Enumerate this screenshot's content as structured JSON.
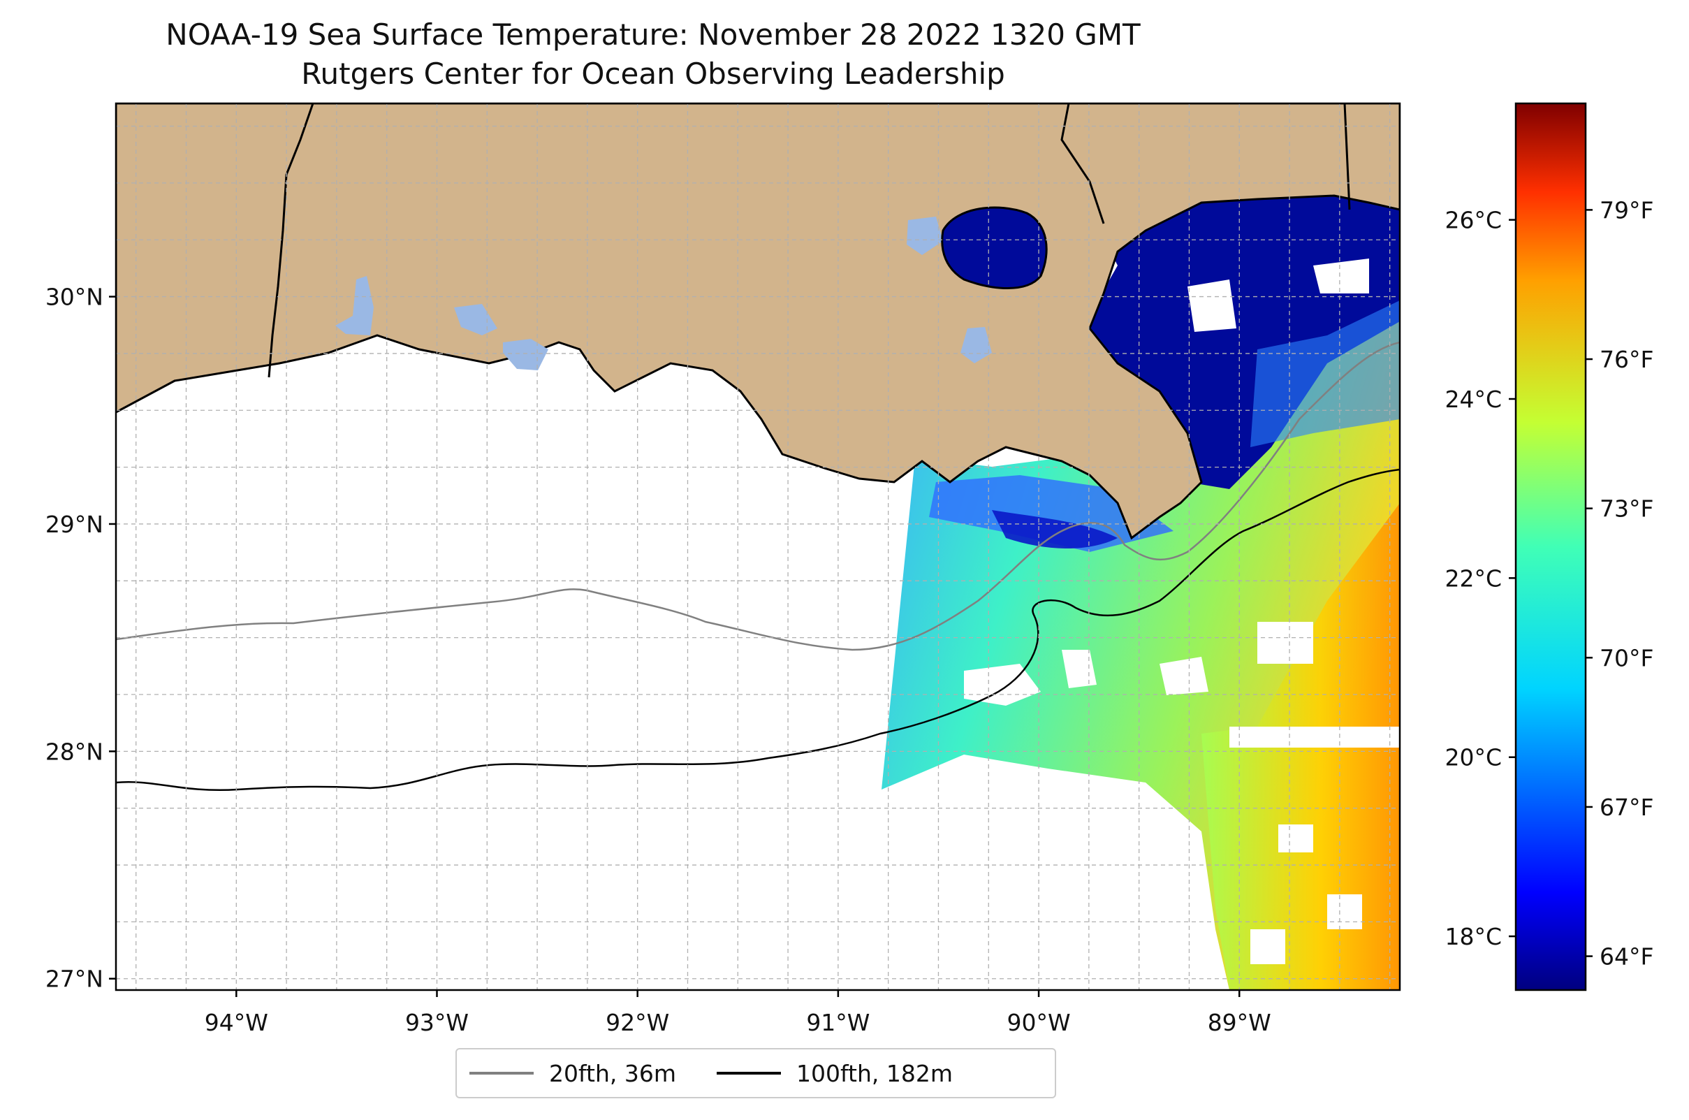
{
  "title": {
    "line1": "NOAA-19 Sea Surface Temperature: November 28 2022 1320 GMT",
    "line2": "Rutgers Center for Ocean Observing Leadership"
  },
  "map": {
    "lon_range": [
      -94.6,
      -88.2
    ],
    "lat_range": [
      26.95,
      30.85
    ],
    "lon_ticks": [
      {
        "value": -94,
        "label": "94°W"
      },
      {
        "value": -93,
        "label": "93°W"
      },
      {
        "value": -92,
        "label": "92°W"
      },
      {
        "value": -91,
        "label": "91°W"
      },
      {
        "value": -90,
        "label": "90°W"
      },
      {
        "value": -89,
        "label": "89°W"
      }
    ],
    "lat_ticks": [
      {
        "value": 27,
        "label": "27°N"
      },
      {
        "value": 28,
        "label": "28°N"
      },
      {
        "value": 29,
        "label": "29°N"
      },
      {
        "value": 30,
        "label": "30°N"
      }
    ],
    "gridlines": true,
    "colors": {
      "land": "#d2b48c",
      "lakes": "#9ab8e4",
      "ocean": "#ffffff",
      "coastline": "#000000"
    }
  },
  "colorbar": {
    "colormap": "jet",
    "celsius_ticks": [
      {
        "value": 18,
        "label": "18°C"
      },
      {
        "value": 20,
        "label": "20°C"
      },
      {
        "value": 22,
        "label": "22°C"
      },
      {
        "value": 24,
        "label": "24°C"
      },
      {
        "value": 26,
        "label": "26°C"
      }
    ],
    "fahrenheit_ticks": [
      {
        "value": 64,
        "label": "64°F"
      },
      {
        "value": 67,
        "label": "67°F"
      },
      {
        "value": 70,
        "label": "70°F"
      },
      {
        "value": 73,
        "label": "73°F"
      },
      {
        "value": 76,
        "label": "76°F"
      },
      {
        "value": 79,
        "label": "79°F"
      }
    ]
  },
  "legend": {
    "items": [
      {
        "label": "20fth, 36m",
        "color": "#808080"
      },
      {
        "label": "100fth, 182m",
        "color": "#000000"
      }
    ]
  }
}
